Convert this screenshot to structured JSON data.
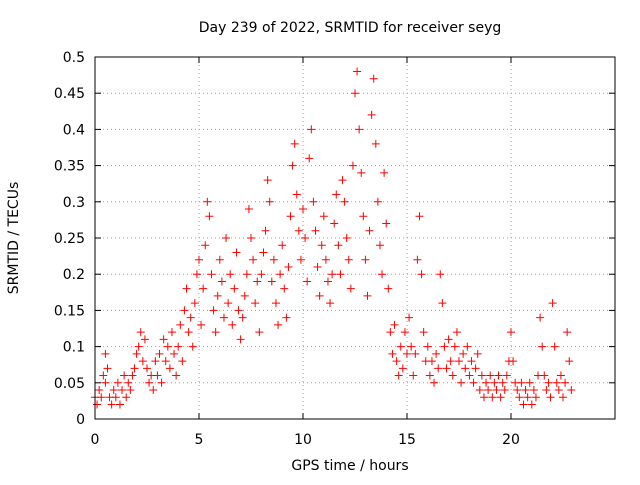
{
  "chart_data": {
    "type": "scatter",
    "title": "Day 239 of 2022, SRMTID for receiver seyg",
    "xlabel": "GPS time / hours",
    "ylabel": "SRMTID / TECUs",
    "xlim": [
      0,
      25
    ],
    "ylim": [
      0,
      0.5
    ],
    "x_ticks": [
      0,
      5,
      10,
      15,
      20
    ],
    "x_tick_labels": [
      "0",
      "5",
      "10",
      "15",
      "20"
    ],
    "y_ticks": [
      0,
      0.05,
      0.1,
      0.15,
      0.2,
      0.25,
      0.3,
      0.35,
      0.4,
      0.45,
      0.5
    ],
    "y_tick_labels": [
      "0",
      "0.05",
      "0.1",
      "0.15",
      "0.2",
      "0.25",
      "0.3",
      "0.35",
      "0.4",
      "0.45",
      "0.5"
    ],
    "grid": true,
    "marker": "+",
    "series": [
      {
        "name": "SRMTID",
        "color": "#ff0000",
        "points": [
          [
            0.0,
            0.03
          ],
          [
            0.1,
            0.02
          ],
          [
            0.2,
            0.04
          ],
          [
            0.3,
            0.03
          ],
          [
            0.4,
            0.06
          ],
          [
            0.5,
            0.09
          ],
          [
            0.5,
            0.05
          ],
          [
            0.6,
            0.07
          ],
          [
            0.7,
            0.03
          ],
          [
            0.8,
            0.02
          ],
          [
            0.9,
            0.04
          ],
          [
            1.0,
            0.03
          ],
          [
            1.1,
            0.05
          ],
          [
            1.2,
            0.02
          ],
          [
            1.3,
            0.04
          ],
          [
            1.4,
            0.06
          ],
          [
            1.5,
            0.03
          ],
          [
            1.6,
            0.05
          ],
          [
            1.7,
            0.04
          ],
          [
            1.8,
            0.06
          ],
          [
            1.9,
            0.07
          ],
          [
            2.0,
            0.09
          ],
          [
            2.1,
            0.1
          ],
          [
            2.2,
            0.12
          ],
          [
            2.3,
            0.08
          ],
          [
            2.4,
            0.11
          ],
          [
            2.5,
            0.07
          ],
          [
            2.6,
            0.05
          ],
          [
            2.7,
            0.06
          ],
          [
            2.8,
            0.04
          ],
          [
            2.9,
            0.08
          ],
          [
            3.0,
            0.06
          ],
          [
            3.1,
            0.09
          ],
          [
            3.2,
            0.05
          ],
          [
            3.3,
            0.11
          ],
          [
            3.4,
            0.08
          ],
          [
            3.5,
            0.1
          ],
          [
            3.6,
            0.07
          ],
          [
            3.7,
            0.12
          ],
          [
            3.8,
            0.09
          ],
          [
            3.9,
            0.06
          ],
          [
            4.0,
            0.1
          ],
          [
            4.1,
            0.13
          ],
          [
            4.2,
            0.08
          ],
          [
            4.3,
            0.15
          ],
          [
            4.4,
            0.18
          ],
          [
            4.5,
            0.12
          ],
          [
            4.6,
            0.14
          ],
          [
            4.7,
            0.1
          ],
          [
            4.8,
            0.16
          ],
          [
            4.9,
            0.2
          ],
          [
            5.0,
            0.22
          ],
          [
            5.1,
            0.13
          ],
          [
            5.2,
            0.18
          ],
          [
            5.3,
            0.24
          ],
          [
            5.4,
            0.3
          ],
          [
            5.5,
            0.28
          ],
          [
            5.6,
            0.2
          ],
          [
            5.7,
            0.15
          ],
          [
            5.8,
            0.12
          ],
          [
            5.9,
            0.17
          ],
          [
            6.0,
            0.22
          ],
          [
            6.1,
            0.19
          ],
          [
            6.2,
            0.14
          ],
          [
            6.3,
            0.25
          ],
          [
            6.4,
            0.16
          ],
          [
            6.5,
            0.2
          ],
          [
            6.6,
            0.13
          ],
          [
            6.7,
            0.18
          ],
          [
            6.8,
            0.23
          ],
          [
            6.9,
            0.15
          ],
          [
            7.0,
            0.11
          ],
          [
            7.1,
            0.14
          ],
          [
            7.2,
            0.17
          ],
          [
            7.3,
            0.2
          ],
          [
            7.4,
            0.29
          ],
          [
            7.5,
            0.25
          ],
          [
            7.6,
            0.22
          ],
          [
            7.7,
            0.16
          ],
          [
            7.8,
            0.19
          ],
          [
            7.9,
            0.12
          ],
          [
            8.0,
            0.2
          ],
          [
            8.1,
            0.23
          ],
          [
            8.2,
            0.26
          ],
          [
            8.3,
            0.33
          ],
          [
            8.4,
            0.3
          ],
          [
            8.5,
            0.19
          ],
          [
            8.6,
            0.22
          ],
          [
            8.7,
            0.16
          ],
          [
            8.8,
            0.13
          ],
          [
            8.9,
            0.2
          ],
          [
            9.0,
            0.24
          ],
          [
            9.1,
            0.18
          ],
          [
            9.2,
            0.14
          ],
          [
            9.3,
            0.21
          ],
          [
            9.4,
            0.28
          ],
          [
            9.5,
            0.35
          ],
          [
            9.6,
            0.38
          ],
          [
            9.7,
            0.31
          ],
          [
            9.8,
            0.26
          ],
          [
            9.9,
            0.22
          ],
          [
            10.0,
            0.29
          ],
          [
            10.1,
            0.25
          ],
          [
            10.2,
            0.19
          ],
          [
            10.3,
            0.36
          ],
          [
            10.4,
            0.4
          ],
          [
            10.5,
            0.3
          ],
          [
            10.6,
            0.26
          ],
          [
            10.7,
            0.21
          ],
          [
            10.8,
            0.17
          ],
          [
            10.9,
            0.24
          ],
          [
            11.0,
            0.28
          ],
          [
            11.1,
            0.22
          ],
          [
            11.2,
            0.19
          ],
          [
            11.3,
            0.16
          ],
          [
            11.4,
            0.2
          ],
          [
            11.5,
            0.27
          ],
          [
            11.6,
            0.31
          ],
          [
            11.7,
            0.24
          ],
          [
            11.8,
            0.2
          ],
          [
            11.9,
            0.33
          ],
          [
            12.0,
            0.3
          ],
          [
            12.1,
            0.25
          ],
          [
            12.2,
            0.22
          ],
          [
            12.3,
            0.18
          ],
          [
            12.4,
            0.35
          ],
          [
            12.5,
            0.45
          ],
          [
            12.6,
            0.48
          ],
          [
            12.7,
            0.4
          ],
          [
            12.8,
            0.34
          ],
          [
            12.9,
            0.28
          ],
          [
            13.0,
            0.22
          ],
          [
            13.1,
            0.17
          ],
          [
            13.2,
            0.26
          ],
          [
            13.3,
            0.42
          ],
          [
            13.4,
            0.47
          ],
          [
            13.5,
            0.38
          ],
          [
            13.6,
            0.3
          ],
          [
            13.7,
            0.24
          ],
          [
            13.8,
            0.2
          ],
          [
            13.9,
            0.34
          ],
          [
            14.0,
            0.27
          ],
          [
            14.1,
            0.18
          ],
          [
            14.2,
            0.12
          ],
          [
            14.3,
            0.09
          ],
          [
            14.4,
            0.13
          ],
          [
            14.5,
            0.08
          ],
          [
            14.6,
            0.06
          ],
          [
            14.7,
            0.1
          ],
          [
            14.8,
            0.07
          ],
          [
            14.9,
            0.12
          ],
          [
            15.0,
            0.09
          ],
          [
            15.1,
            0.14
          ],
          [
            15.2,
            0.1
          ],
          [
            15.3,
            0.06
          ],
          [
            15.4,
            0.09
          ],
          [
            15.5,
            0.22
          ],
          [
            15.6,
            0.28
          ],
          [
            15.7,
            0.2
          ],
          [
            15.8,
            0.12
          ],
          [
            15.9,
            0.08
          ],
          [
            16.0,
            0.1
          ],
          [
            16.1,
            0.06
          ],
          [
            16.2,
            0.08
          ],
          [
            16.3,
            0.05
          ],
          [
            16.4,
            0.09
          ],
          [
            16.5,
            0.07
          ],
          [
            16.6,
            0.2
          ],
          [
            16.7,
            0.16
          ],
          [
            16.8,
            0.1
          ],
          [
            16.9,
            0.07
          ],
          [
            17.0,
            0.11
          ],
          [
            17.1,
            0.08
          ],
          [
            17.2,
            0.06
          ],
          [
            17.3,
            0.1
          ],
          [
            17.4,
            0.12
          ],
          [
            17.5,
            0.08
          ],
          [
            17.6,
            0.05
          ],
          [
            17.7,
            0.09
          ],
          [
            17.8,
            0.07
          ],
          [
            17.9,
            0.1
          ],
          [
            18.0,
            0.06
          ],
          [
            18.1,
            0.08
          ],
          [
            18.2,
            0.05
          ],
          [
            18.3,
            0.07
          ],
          [
            18.4,
            0.09
          ],
          [
            18.5,
            0.04
          ],
          [
            18.6,
            0.06
          ],
          [
            18.7,
            0.03
          ],
          [
            18.8,
            0.05
          ],
          [
            18.9,
            0.04
          ],
          [
            19.0,
            0.06
          ],
          [
            19.1,
            0.03
          ],
          [
            19.2,
            0.05
          ],
          [
            19.3,
            0.04
          ],
          [
            19.4,
            0.06
          ],
          [
            19.5,
            0.03
          ],
          [
            19.6,
            0.05
          ],
          [
            19.7,
            0.04
          ],
          [
            19.8,
            0.06
          ],
          [
            19.9,
            0.08
          ],
          [
            20.0,
            0.12
          ],
          [
            20.1,
            0.08
          ],
          [
            20.2,
            0.05
          ],
          [
            20.3,
            0.04
          ],
          [
            20.4,
            0.03
          ],
          [
            20.5,
            0.05
          ],
          [
            20.6,
            0.02
          ],
          [
            20.7,
            0.04
          ],
          [
            20.8,
            0.03
          ],
          [
            20.9,
            0.05
          ],
          [
            21.0,
            0.02
          ],
          [
            21.1,
            0.04
          ],
          [
            21.2,
            0.03
          ],
          [
            21.3,
            0.06
          ],
          [
            21.4,
            0.14
          ],
          [
            21.5,
            0.1
          ],
          [
            21.6,
            0.06
          ],
          [
            21.7,
            0.04
          ],
          [
            21.8,
            0.05
          ],
          [
            21.9,
            0.03
          ],
          [
            22.0,
            0.16
          ],
          [
            22.1,
            0.1
          ],
          [
            22.2,
            0.05
          ],
          [
            22.3,
            0.04
          ],
          [
            22.4,
            0.06
          ],
          [
            22.5,
            0.03
          ],
          [
            22.6,
            0.05
          ],
          [
            22.7,
            0.12
          ],
          [
            22.8,
            0.08
          ],
          [
            22.9,
            0.04
          ]
        ]
      }
    ]
  }
}
